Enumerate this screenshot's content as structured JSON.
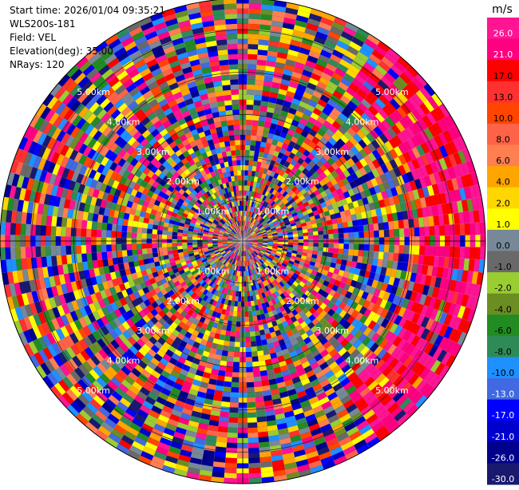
{
  "info": {
    "start_time": "Start time: 2026/01/04 09:35:21",
    "instrument": "WLS200s-181",
    "field": "Field: VEL",
    "elevation": "Elevation(deg): 35.00",
    "nrays": "NRays: 120"
  },
  "colorbar": {
    "unit": "m/s",
    "labels": [
      "26.0",
      "21.0",
      "17.0",
      "13.0",
      "10.0",
      "8.0",
      "6.0",
      "4.0",
      "2.0",
      "1.0",
      "0.0",
      "-1.0",
      "-2.0",
      "-4.0",
      "-6.0",
      "-8.0",
      "-10.0",
      "-13.0",
      "-17.0",
      "-21.0",
      "-26.0",
      "-30.0"
    ],
    "colors": [
      "#ff1493",
      "#ff007f",
      "#ff0000",
      "#ff3030",
      "#ff4500",
      "#ff6347",
      "#ff7f50",
      "#ffa500",
      "#ffd700",
      "#ffff00",
      "#778899",
      "#696969",
      "#9acd32",
      "#6b8e23",
      "#228b22",
      "#2e8b57",
      "#1e90ff",
      "#4169e1",
      "#0000ff",
      "#0000cd",
      "#00008b",
      "#191970"
    ]
  },
  "chart_data": {
    "type": "heatmap",
    "field": "VEL",
    "units": "m/s",
    "elevation_deg": 35.0,
    "n_rays": 120,
    "range_rings_km": [
      1.0,
      2.0,
      3.0,
      4.0,
      5.0
    ],
    "ring_label_text": [
      "1.00km",
      "2.00km",
      "3.00km",
      "4.00km",
      "5.00km"
    ],
    "range_extent_km": 5.75,
    "color_levels": [
      -30,
      -26,
      -21,
      -17,
      -13,
      -10,
      -8,
      -6,
      -4,
      -2,
      -1,
      0,
      1,
      2,
      4,
      6,
      8,
      10,
      13,
      17,
      21,
      26
    ],
    "structure": {
      "east_sector_dominant_positive_velocity": true,
      "outer_region_noisy": true
    }
  }
}
